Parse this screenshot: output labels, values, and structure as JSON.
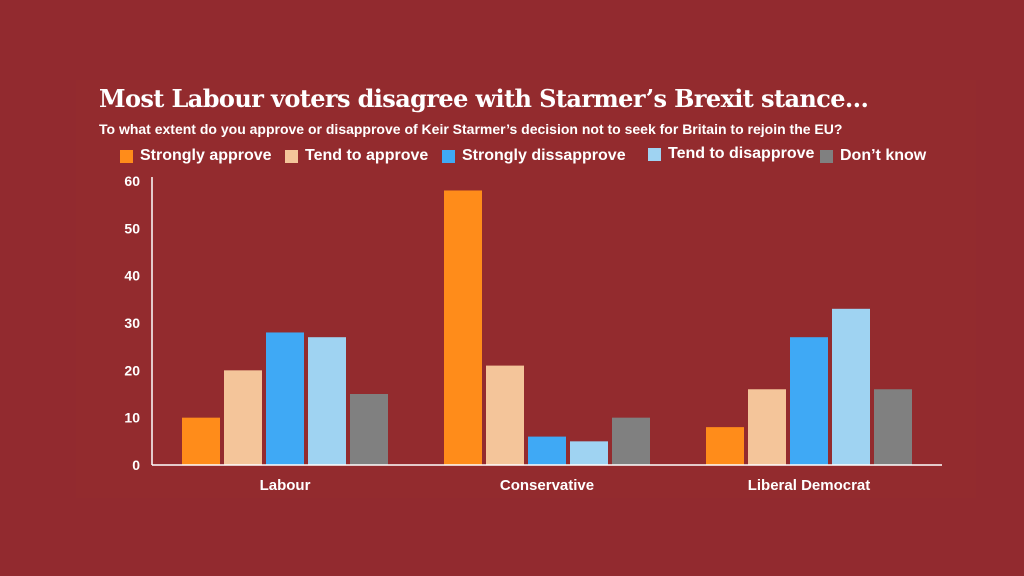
{
  "colors": {
    "background": "#922a2f",
    "text": "#ffffff",
    "axis": "#ffffff"
  },
  "chart_data": {
    "type": "bar",
    "title": "Most Labour voters disagree with Starmer’s Brexit stance…",
    "subtitle": "To what extent do you approve or disapprove of Keir Starmer’s decision not to seek for Britain to rejoin the EU?",
    "categories": [
      "Labour",
      "Conservative",
      "Liberal Democrat"
    ],
    "series": [
      {
        "name": "Strongly approve",
        "color": "#ff8c1a",
        "values": [
          10,
          58,
          8
        ]
      },
      {
        "name": "Tend to approve",
        "color": "#f4c59a",
        "values": [
          20,
          21,
          16
        ]
      },
      {
        "name": "Strongly dissapprove",
        "color": "#3fa9f5",
        "values": [
          28,
          6,
          27
        ]
      },
      {
        "name": "Tend to disapprove",
        "color": "#9fd3f2",
        "values": [
          27,
          5,
          33
        ]
      },
      {
        "name": "Don’t know",
        "color": "#808080",
        "values": [
          15,
          10,
          16
        ]
      }
    ],
    "yticks": [
      0,
      10,
      20,
      30,
      40,
      50,
      60
    ],
    "ylim": [
      0,
      60
    ],
    "xlabel": "",
    "ylabel": "",
    "grid": false,
    "legend_position": "top"
  }
}
